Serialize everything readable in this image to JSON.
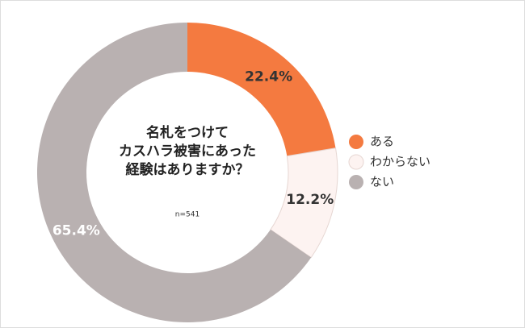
{
  "chart_data": {
    "type": "donut",
    "title": [
      "名札をつけて",
      "カスハラ被害にあった",
      "経験はありますか？"
    ],
    "subtitle": "n=541",
    "categories": [
      "ある",
      "わからない",
      "ない"
    ],
    "values": [
      22.4,
      12.2,
      65.4
    ],
    "value_labels": [
      "22.4%",
      "12.2%",
      "65.4%"
    ],
    "colors": [
      "#f47a40",
      "#fdf3f1",
      "#b9b1b1"
    ],
    "legend": "right"
  }
}
